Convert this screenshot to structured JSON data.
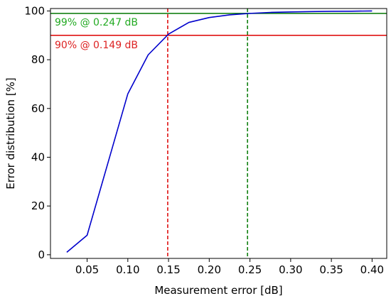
{
  "chart_data": {
    "type": "line",
    "title": "",
    "xlabel": "Measurement error [dB]",
    "ylabel": "Error distribution [%]",
    "xlim": [
      0.005,
      0.418
    ],
    "ylim": [
      -1.5,
      101
    ],
    "x_ticks": [
      0.05,
      0.1,
      0.15,
      0.2,
      0.25,
      0.3,
      0.35,
      0.4
    ],
    "x_tick_labels": [
      "0.05",
      "0.10",
      "0.15",
      "0.20",
      "0.25",
      "0.30",
      "0.35",
      "0.40"
    ],
    "y_ticks": [
      0,
      20,
      40,
      60,
      80,
      100
    ],
    "y_tick_labels": [
      "0",
      "20",
      "40",
      "60",
      "80",
      "100"
    ],
    "grid": false,
    "series": [
      {
        "color": "#0000cc",
        "x": [
          0.025,
          0.05,
          0.075,
          0.1,
          0.125,
          0.15,
          0.175,
          0.2,
          0.225,
          0.25,
          0.275,
          0.3,
          0.325,
          0.35,
          0.375,
          0.4
        ],
        "y": [
          1,
          8,
          37,
          66,
          82,
          90.5,
          95.3,
          97.3,
          98.4,
          99,
          99.4,
          99.6,
          99.75,
          99.85,
          99.9,
          100
        ]
      }
    ],
    "reference_lines": [
      {
        "orientation": "horizontal",
        "value": 99,
        "color": "#007700",
        "style": "solid"
      },
      {
        "orientation": "horizontal",
        "value": 90,
        "color": "#dd0000",
        "style": "solid"
      },
      {
        "orientation": "vertical",
        "value": 0.149,
        "color": "#dd0000",
        "style": "dashed"
      },
      {
        "orientation": "vertical",
        "value": 0.247,
        "color": "#007700",
        "style": "dashed"
      }
    ],
    "annotations": [
      {
        "text": "99% @ 0.247 dB",
        "color": "#22aa22"
      },
      {
        "text": "90% @ 0.149 dB",
        "color": "#dd2222"
      }
    ]
  }
}
